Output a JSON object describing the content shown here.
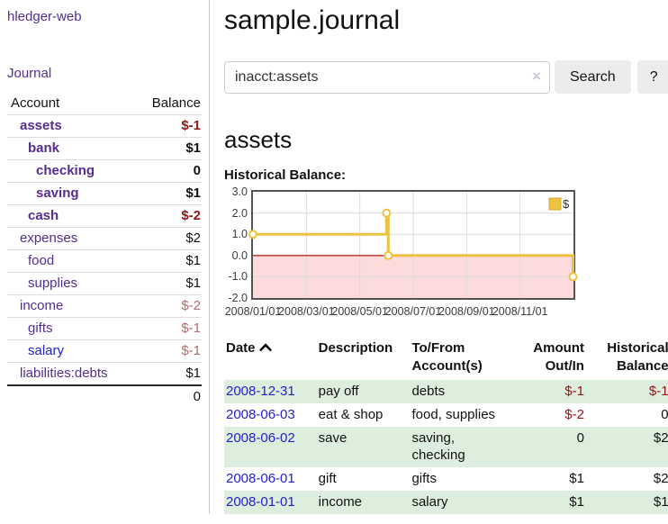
{
  "app": {
    "brand": "hledger-web"
  },
  "colors": {
    "link_purple": "#552d90",
    "link_blue": "#2222cc",
    "negative_strong": "#941414",
    "negative_soft": "#b36b6b",
    "row_stripe_green": "#ddeedd",
    "chart_gold": "#edc240",
    "chart_negative_region": "#fbdbdb",
    "chart_zero_line": "#aa0000"
  },
  "icons": {
    "clear_search": "x-icon",
    "date_sort": "chevron-up-icon"
  },
  "sidebar": {
    "journal_label": "Journal",
    "accounts": {
      "header_account": "Account",
      "header_balance": "Balance",
      "rows": [
        {
          "name": "assets",
          "balance": "$-1",
          "level": 1,
          "bold": true,
          "neg": "strong"
        },
        {
          "name": "bank",
          "balance": "$1",
          "level": 2,
          "bold": true
        },
        {
          "name": "checking",
          "balance": "0",
          "level": 3,
          "bold": true
        },
        {
          "name": "saving",
          "balance": "$1",
          "level": 3,
          "bold": true
        },
        {
          "name": "cash",
          "balance": "$-2",
          "level": 2,
          "bold": true,
          "neg": "strong"
        },
        {
          "name": "expenses",
          "balance": "$2",
          "level": 1
        },
        {
          "name": "food",
          "balance": "$1",
          "level": 2
        },
        {
          "name": "supplies",
          "balance": "$1",
          "level": 2
        },
        {
          "name": "income",
          "balance": "$-2",
          "level": 1,
          "neg": "soft"
        },
        {
          "name": "gifts",
          "balance": "$-1",
          "level": 2,
          "neg": "soft"
        },
        {
          "name": "salary",
          "balance": "$-1",
          "level": 2,
          "neg": "soft",
          "blue": true
        },
        {
          "name": "liabilities:debts",
          "balance": "$1",
          "level": 1
        }
      ],
      "total": "0"
    }
  },
  "header": {
    "title": "sample.journal"
  },
  "search": {
    "value": "inacct:assets",
    "clear_icon": "×",
    "button_label": "Search",
    "help_label": "?"
  },
  "account_page": {
    "heading": "assets",
    "chart_label": "Historical Balance:"
  },
  "chart_data": {
    "type": "line",
    "title": "Historical Balance",
    "line_style": "step-after",
    "marker": "open-circle",
    "grid": true,
    "legend": {
      "position": "top-right",
      "entries": [
        "$"
      ]
    },
    "series": [
      {
        "name": "$",
        "color": "#edc240",
        "points": [
          [
            "2008-01-01",
            1.0
          ],
          [
            "2008-06-01",
            2.0
          ],
          [
            "2008-06-03",
            0.0
          ],
          [
            "2008-12-31",
            -1.0
          ]
        ]
      }
    ],
    "ylim": [
      -2.0,
      3.0
    ],
    "y_ticks": [
      "3.0",
      "2.0",
      "1.0",
      "0.0",
      "-1.0",
      "-2.0"
    ],
    "x_ticks": [
      "2008/01/01",
      "2008/03/01",
      "2008/05/01",
      "2008/07/01",
      "2008/09/01",
      "2008/11/01"
    ],
    "xlim": [
      "2008-01-01",
      "2009-01-01"
    ],
    "zero_line_color": "#aa0000",
    "negative_region_color": "#fbdbdb"
  },
  "register": {
    "headers": {
      "date": "Date",
      "description": "Description",
      "accounts": "To/From Account(s)",
      "amount": "Amount Out/In",
      "balance": "Historical Balance"
    },
    "rows": [
      {
        "date": "2008-12-31",
        "description": "pay off",
        "accounts": "debts",
        "amount": "$-1",
        "amount_neg": true,
        "balance": "$-1",
        "balance_neg": true
      },
      {
        "date": "2008-06-03",
        "description": "eat & shop",
        "accounts": "food, supplies",
        "amount": "$-2",
        "amount_neg": true,
        "balance": "0"
      },
      {
        "date": "2008-06-02",
        "description": "save",
        "accounts": "saving, checking",
        "amount": "0",
        "balance": "$2"
      },
      {
        "date": "2008-06-01",
        "description": "gift",
        "accounts": "gifts",
        "amount": "$1",
        "balance": "$2"
      },
      {
        "date": "2008-01-01",
        "description": "income",
        "accounts": "salary",
        "amount": "$1",
        "balance": "$1"
      }
    ]
  }
}
